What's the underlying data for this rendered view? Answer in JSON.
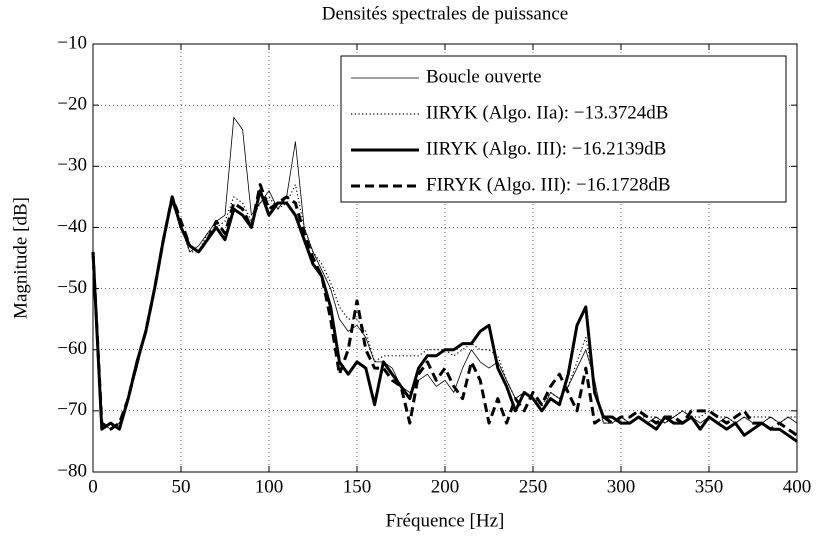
{
  "chart_data": {
    "type": "line",
    "title": "Densités spectrales de puissance",
    "xlabel": "Fréquence [Hz]",
    "ylabel": "Magnitude [dB]",
    "x": [
      0,
      5,
      10,
      15,
      20,
      25,
      30,
      35,
      40,
      45,
      50,
      55,
      60,
      65,
      70,
      75,
      80,
      85,
      90,
      95,
      100,
      105,
      110,
      115,
      120,
      125,
      130,
      135,
      140,
      145,
      150,
      155,
      160,
      165,
      170,
      175,
      180,
      185,
      190,
      195,
      200,
      205,
      210,
      215,
      220,
      225,
      230,
      235,
      240,
      245,
      250,
      255,
      260,
      265,
      270,
      275,
      280,
      285,
      290,
      295,
      300,
      305,
      310,
      315,
      320,
      325,
      330,
      335,
      340,
      345,
      350,
      355,
      360,
      365,
      370,
      375,
      380,
      385,
      390,
      395,
      400
    ],
    "xlim": [
      0,
      400
    ],
    "xticks": [
      0,
      50,
      100,
      150,
      200,
      250,
      300,
      350,
      400
    ],
    "ylim": [
      -80,
      -10
    ],
    "yticks": [
      {
        "value": -80,
        "label": "−80"
      },
      {
        "value": -70,
        "label": "−70"
      },
      {
        "value": -60,
        "label": "−60"
      },
      {
        "value": -50,
        "label": "−50"
      },
      {
        "value": -40,
        "label": "−40"
      },
      {
        "value": -30,
        "label": "−30"
      },
      {
        "value": -20,
        "label": "−20"
      },
      {
        "value": -10,
        "label": "−10"
      }
    ],
    "grid": true,
    "legend": "upper right",
    "series": [
      {
        "name": "Boucle ouverte",
        "color": "#000000",
        "linestyle": "solid",
        "linewidth": 0.8,
        "values": [
          -44,
          -72,
          -73,
          -72,
          -68,
          -63,
          -57,
          -50,
          -42,
          -36,
          -40,
          -44,
          -43,
          -41,
          -39,
          -38,
          -22,
          -24,
          -38,
          -36,
          -34,
          -37,
          -35,
          -26,
          -40,
          -44,
          -47,
          -50,
          -55,
          -57,
          -56,
          -58,
          -62,
          -62,
          -63,
          -66,
          -67,
          -65,
          -64,
          -66,
          -65,
          -67,
          -63,
          -60,
          -62,
          -63,
          -62,
          -65,
          -68,
          -67,
          -68,
          -70,
          -67,
          -68,
          -66,
          -63,
          -60,
          -65,
          -72,
          -72,
          -71,
          -72,
          -71,
          -72,
          -71,
          -72,
          -71,
          -70,
          -71,
          -72,
          -71,
          -72,
          -71,
          -72,
          -71,
          -72,
          -72,
          -71,
          -72,
          -71,
          -72
        ]
      },
      {
        "name": "IIRYK (Algo. IIa): −13.3724dB",
        "color": "#000000",
        "linestyle": "dotted",
        "linewidth": 1.2,
        "values": [
          -44,
          -72,
          -73,
          -72,
          -68,
          -63,
          -57,
          -50,
          -42,
          -36,
          -40,
          -44,
          -44,
          -41,
          -40,
          -39,
          -35,
          -36,
          -39,
          -36,
          -35,
          -37,
          -36,
          -33,
          -40,
          -44,
          -46,
          -49,
          -53,
          -55,
          -55,
          -57,
          -62,
          -61,
          -61,
          -61,
          -61,
          -61,
          -60,
          -60,
          -60,
          -61,
          -60,
          -59,
          -60,
          -60,
          -61,
          -65,
          -68,
          -67,
          -68,
          -69,
          -67,
          -68,
          -66,
          -62,
          -58,
          -66,
          -72,
          -72,
          -71,
          -72,
          -71,
          -71,
          -71,
          -72,
          -71,
          -70,
          -71,
          -71,
          -70,
          -71,
          -71,
          -72,
          -71,
          -71,
          -71,
          -71,
          -72,
          -71,
          -71
        ]
      },
      {
        "name": "IIRYK (Algo. III): −16.2139dB",
        "color": "#000000",
        "linestyle": "solid",
        "linewidth": 3,
        "values": [
          -44,
          -73,
          -72,
          -73,
          -68,
          -62,
          -57,
          -50,
          -42,
          -35,
          -40,
          -43,
          -44,
          -42,
          -40,
          -42,
          -37,
          -38,
          -40,
          -34,
          -38,
          -36,
          -36,
          -38,
          -42,
          -46,
          -48,
          -53,
          -62,
          -64,
          -62,
          -63,
          -69,
          -62,
          -64,
          -66,
          -68,
          -63,
          -61,
          -61,
          -60,
          -60,
          -59,
          -59,
          -57,
          -56,
          -63,
          -66,
          -70,
          -67,
          -68,
          -70,
          -68,
          -69,
          -64,
          -56,
          -53,
          -67,
          -71,
          -71,
          -72,
          -72,
          -71,
          -72,
          -73,
          -71,
          -72,
          -72,
          -71,
          -73,
          -71,
          -72,
          -73,
          -72,
          -74,
          -73,
          -72,
          -73,
          -73,
          -74,
          -75
        ]
      },
      {
        "name": "FIRYK (Algo. III): −16.1728dB",
        "color": "#000000",
        "linestyle": "dashed",
        "linewidth": 3,
        "values": [
          -44,
          -72,
          -73,
          -72,
          -68,
          -62,
          -57,
          -50,
          -42,
          -35,
          -39,
          -43,
          -44,
          -42,
          -39,
          -41,
          -36,
          -37,
          -40,
          -33,
          -37,
          -36,
          -35,
          -36,
          -41,
          -45,
          -48,
          -55,
          -64,
          -60,
          -52,
          -60,
          -63,
          -63,
          -65,
          -66,
          -72,
          -64,
          -62,
          -65,
          -63,
          -66,
          -68,
          -62,
          -65,
          -72,
          -68,
          -72,
          -68,
          -70,
          -67,
          -69,
          -66,
          -64,
          -67,
          -70,
          -63,
          -72,
          -71,
          -72,
          -71,
          -71,
          -70,
          -71,
          -72,
          -71,
          -71,
          -72,
          -70,
          -70,
          -70,
          -71,
          -72,
          -71,
          -70,
          -72,
          -72,
          -73,
          -72,
          -73,
          -74
        ]
      }
    ]
  }
}
